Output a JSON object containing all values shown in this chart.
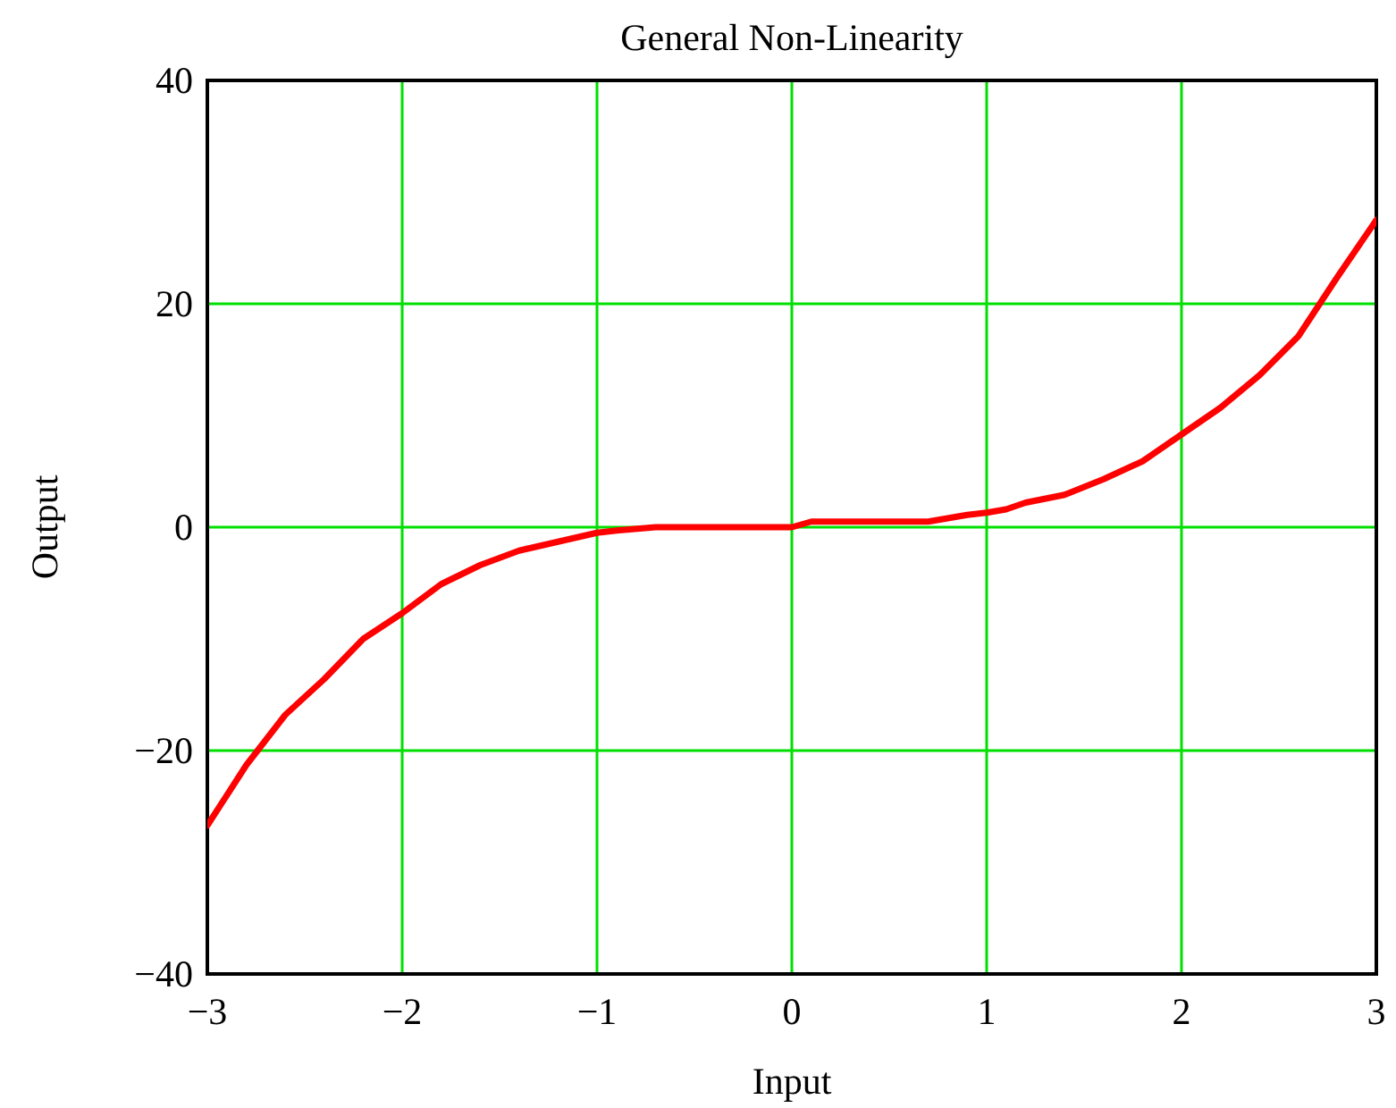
{
  "chart_data": {
    "type": "line",
    "title": "General Non-Linearity",
    "xlabel": "Input",
    "ylabel": "Output",
    "x": [
      -3,
      -2.8,
      -2.6,
      -2.4,
      -2.2,
      -2,
      -1.8,
      -1.6,
      -1.4,
      -1.2,
      -1,
      -0.9,
      -0.7,
      0,
      0.1,
      0.7,
      0.9,
      1,
      1.1,
      1.2,
      1.4,
      1.6,
      1.8,
      2,
      2.2,
      2.4,
      2.6,
      2.8,
      3
    ],
    "series": [
      {
        "color": "#ff0000",
        "values": [
          -26.7,
          -21.3,
          -16.8,
          -13.6,
          -10,
          -7.7,
          -5.1,
          -3.4,
          -2.1,
          -1.3,
          -0.5,
          -0.3,
          0,
          0,
          0.5,
          0.5,
          1.1,
          1.3,
          1.6,
          2.2,
          2.9,
          4.3,
          5.9,
          8.3,
          10.7,
          13.6,
          17.1,
          22.4,
          27.5
        ]
      }
    ],
    "xlim": [
      -3,
      3
    ],
    "ylim": [
      -40,
      40
    ],
    "xticks": [
      {
        "value": -3,
        "label": "−3"
      },
      {
        "value": -2,
        "label": "−2"
      },
      {
        "value": -1,
        "label": "−1"
      },
      0,
      1,
      2,
      3
    ],
    "yticks": [
      {
        "value": -40,
        "label": "−40"
      },
      {
        "value": -20,
        "label": "−20"
      },
      0,
      20,
      40
    ],
    "grid": true,
    "line_style": "solid"
  }
}
